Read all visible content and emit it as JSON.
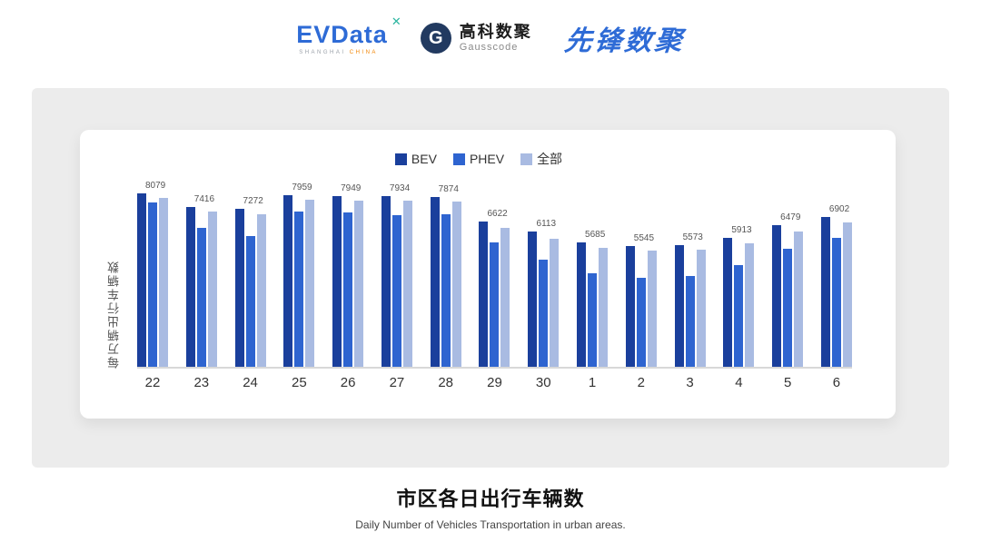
{
  "header": {
    "evdata": {
      "name": "EVData",
      "mark": "✕",
      "sub_left": "SHANGHAI",
      "sub_right": "CHINA"
    },
    "gausscode": {
      "icon_letter": "G",
      "cn": "高科数聚",
      "en": "Gausscode"
    },
    "pioneer": {
      "cn": "先锋数聚"
    }
  },
  "chart_data": {
    "type": "bar",
    "title": "市区各日出行车辆数",
    "subtitle": "Daily Number of Vehicles Transportation in urban areas.",
    "xlabel": "",
    "ylabel": "每万辆出行车辆数",
    "ylim": [
      0,
      8800
    ],
    "grid": false,
    "legend_position": "top",
    "categories": [
      "22",
      "23",
      "24",
      "25",
      "26",
      "27",
      "28",
      "29",
      "30",
      "1",
      "2",
      "3",
      "4",
      "5",
      "6"
    ],
    "series": [
      {
        "key": "bev",
        "name": "BEV",
        "color": "#1a3f9c",
        "values": [
          8300,
          7650,
          7550,
          8200,
          8150,
          8150,
          8100,
          6950,
          6450,
          5950,
          5750,
          5800,
          6150,
          6750,
          7150
        ]
      },
      {
        "key": "phev",
        "name": "PHEV",
        "color": "#2e64d0",
        "values": [
          7850,
          6650,
          6250,
          7400,
          7350,
          7250,
          7300,
          5950,
          5100,
          4450,
          4250,
          4350,
          4850,
          5650,
          6150
        ]
      },
      {
        "key": "all",
        "name": "全部",
        "color": "#a9bbe2",
        "values": [
          8079,
          7416,
          7272,
          7959,
          7949,
          7934,
          7874,
          6622,
          6113,
          5685,
          5545,
          5573,
          5913,
          6479,
          6902
        ]
      }
    ],
    "value_labels": [
      8079,
      7416,
      7272,
      7959,
      7949,
      7934,
      7874,
      6622,
      6113,
      5685,
      5545,
      5573,
      5913,
      6479,
      6902
    ],
    "axis_line_color": "#d8d8d8"
  },
  "footer": {
    "title": "市区各日出行车辆数",
    "subtitle": "Daily Number of Vehicles Transportation in urban areas."
  }
}
